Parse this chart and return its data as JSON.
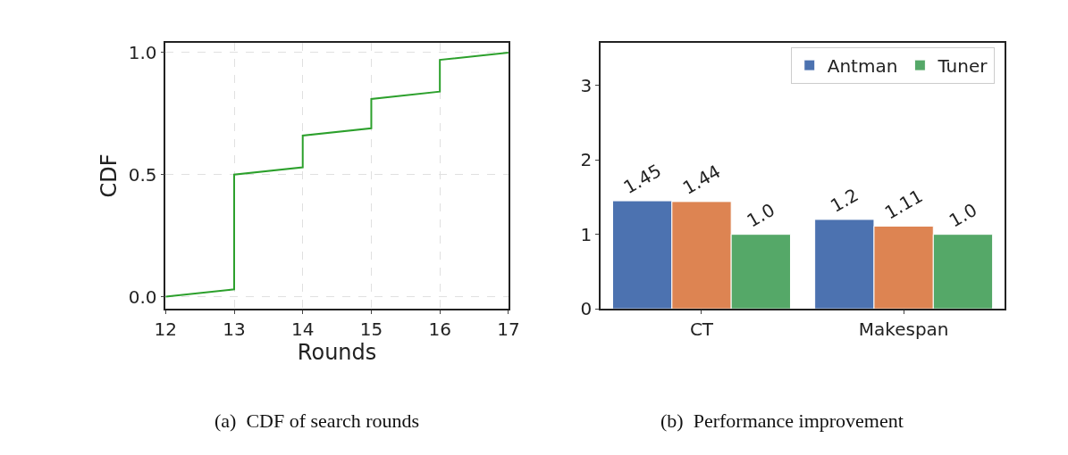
{
  "chart_data": [
    {
      "type": "line",
      "title": "(a)  CDF of search rounds",
      "xlabel": "Rounds",
      "ylabel": "CDF",
      "x": [
        12,
        13,
        13,
        14,
        14,
        15,
        15,
        16,
        16,
        17
      ],
      "series": [
        {
          "color": "#2ca02c",
          "values": [
            0.0,
            0.03,
            0.5,
            0.53,
            0.66,
            0.69,
            0.81,
            0.84,
            0.97,
            1.0
          ]
        }
      ],
      "xlim": [
        12,
        17
      ],
      "xticks": [
        12,
        13,
        14,
        15,
        16,
        17
      ],
      "ylim": [
        -0.05,
        1.04
      ],
      "yticks": [
        {
          "value": 0,
          "label": "0.0"
        },
        0.5,
        {
          "value": 1,
          "label": "1.0"
        }
      ],
      "grid": true,
      "line_style": "solid",
      "marker": "none"
    },
    {
      "type": "bar",
      "title": "(b)  Performance improvement",
      "categories": [
        "CT",
        "Makespan"
      ],
      "series": [
        {
          "name": "Antman",
          "color": "#4c72b0",
          "values": [
            1.45,
            1.2
          ],
          "value_labels": [
            "1.45",
            "1.2"
          ]
        },
        {
          "color": "#dd8452",
          "values": [
            1.44,
            1.11
          ],
          "value_labels": [
            "1.44",
            "1.11"
          ]
        },
        {
          "name": "Tuner",
          "color": "#55a868",
          "values": [
            1.0,
            1.0
          ],
          "value_labels": [
            "1.0",
            "1.0"
          ]
        }
      ],
      "ylim": [
        0,
        3.57
      ],
      "yticks": [
        0,
        1,
        2,
        3
      ],
      "legend": "top right",
      "grid": false
    }
  ]
}
